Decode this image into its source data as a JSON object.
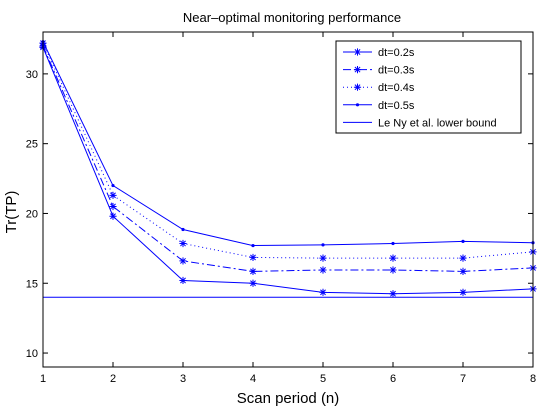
{
  "chart_data": {
    "type": "line",
    "title": "Near–optimal monitoring performance",
    "xlabel": "Scan period (n)",
    "ylabel": "Tr(TP)",
    "xlim": [
      1,
      8
    ],
    "ylim": [
      9,
      33
    ],
    "xticks": [
      1,
      2,
      3,
      4,
      5,
      6,
      7,
      8
    ],
    "yticks": [
      10,
      15,
      20,
      25,
      30
    ],
    "x": [
      1,
      2,
      3,
      4,
      5,
      6,
      7,
      8
    ],
    "grid": false,
    "legend_position": "top-right",
    "color": "#0000ff",
    "series": [
      {
        "name": "dt=0.2s",
        "line": "solid",
        "marker": "star",
        "values": [
          31.9,
          19.8,
          15.2,
          15.0,
          14.35,
          14.25,
          14.35,
          14.6
        ]
      },
      {
        "name": "dt=0.3s",
        "line": "dashdot",
        "marker": "star",
        "values": [
          32.0,
          20.5,
          16.6,
          15.85,
          15.95,
          15.95,
          15.85,
          16.1
        ]
      },
      {
        "name": "dt=0.4s",
        "line": "dotted",
        "marker": "star",
        "values": [
          32.2,
          21.3,
          17.85,
          16.85,
          16.8,
          16.8,
          16.8,
          17.25
        ]
      },
      {
        "name": "dt=0.5s",
        "line": "solid",
        "marker": "dot",
        "values": [
          32.3,
          22.0,
          18.85,
          17.7,
          17.75,
          17.85,
          18.0,
          17.9
        ]
      },
      {
        "name": "Le Ny et al. lower bound",
        "line": "solid",
        "marker": "none",
        "values": [
          14.0,
          14.0,
          14.0,
          14.0,
          14.0,
          14.0,
          14.0,
          14.0
        ]
      }
    ]
  }
}
